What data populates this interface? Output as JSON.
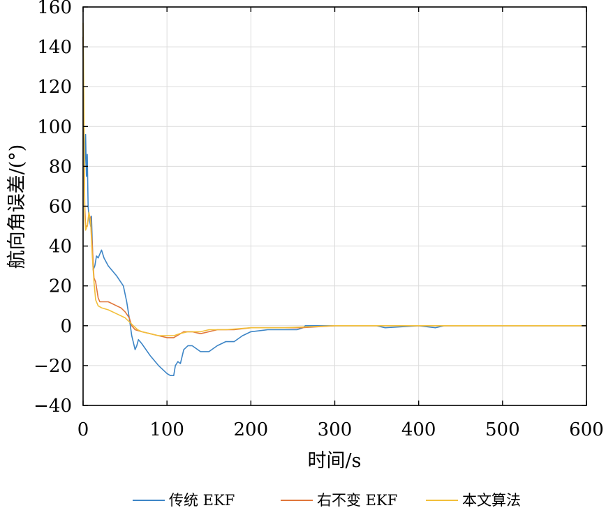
{
  "chart_data": {
    "type": "line",
    "xlabel": "时间/s",
    "ylabel": "航向角误差/(°)",
    "xlim": [
      0,
      600
    ],
    "ylim": [
      -40,
      160
    ],
    "xticks": [
      0,
      100,
      200,
      300,
      400,
      500,
      600
    ],
    "yticks": [
      -40,
      -20,
      0,
      20,
      40,
      60,
      80,
      100,
      120,
      140,
      160
    ],
    "grid": true,
    "legend_position": "bottom",
    "series": [
      {
        "name": "传统 EKF",
        "color": "#3d85c6",
        "points": [
          [
            0,
            145
          ],
          [
            1,
            100
          ],
          [
            2,
            80
          ],
          [
            3,
            96
          ],
          [
            4,
            75
          ],
          [
            5,
            86
          ],
          [
            6,
            60
          ],
          [
            7,
            55
          ],
          [
            9,
            50
          ],
          [
            10,
            55
          ],
          [
            12,
            28
          ],
          [
            14,
            30
          ],
          [
            16,
            35
          ],
          [
            18,
            34
          ],
          [
            20,
            36
          ],
          [
            22,
            38
          ],
          [
            25,
            34
          ],
          [
            30,
            30
          ],
          [
            40,
            25
          ],
          [
            48,
            20
          ],
          [
            52,
            12
          ],
          [
            55,
            4
          ],
          [
            58,
            -5
          ],
          [
            62,
            -12
          ],
          [
            64,
            -10
          ],
          [
            66,
            -7
          ],
          [
            70,
            -9
          ],
          [
            80,
            -15
          ],
          [
            90,
            -20
          ],
          [
            100,
            -24
          ],
          [
            104,
            -25
          ],
          [
            108,
            -25
          ],
          [
            110,
            -20
          ],
          [
            113,
            -18
          ],
          [
            116,
            -19
          ],
          [
            120,
            -12
          ],
          [
            125,
            -10
          ],
          [
            130,
            -10
          ],
          [
            140,
            -13
          ],
          [
            145,
            -13
          ],
          [
            150,
            -13
          ],
          [
            160,
            -10
          ],
          [
            170,
            -8
          ],
          [
            180,
            -8
          ],
          [
            190,
            -5
          ],
          [
            200,
            -3
          ],
          [
            220,
            -2
          ],
          [
            240,
            -2
          ],
          [
            255,
            -2
          ],
          [
            262,
            -1
          ],
          [
            265,
            0
          ],
          [
            280,
            0
          ],
          [
            300,
            0
          ],
          [
            350,
            0
          ],
          [
            360,
            -1
          ],
          [
            400,
            0
          ],
          [
            420,
            -1
          ],
          [
            430,
            0
          ],
          [
            500,
            0
          ],
          [
            600,
            0
          ]
        ]
      },
      {
        "name": "右不变 EKF",
        "color": "#e0763a",
        "points": [
          [
            0,
            145
          ],
          [
            1,
            100
          ],
          [
            2,
            60
          ],
          [
            3,
            50
          ],
          [
            5,
            50
          ],
          [
            7,
            56
          ],
          [
            9,
            54
          ],
          [
            11,
            40
          ],
          [
            13,
            24
          ],
          [
            15,
            22
          ],
          [
            18,
            14
          ],
          [
            20,
            12
          ],
          [
            25,
            12
          ],
          [
            30,
            12
          ],
          [
            35,
            11
          ],
          [
            40,
            10
          ],
          [
            45,
            9
          ],
          [
            50,
            7
          ],
          [
            55,
            4
          ],
          [
            58,
            0
          ],
          [
            62,
            -2
          ],
          [
            70,
            -3
          ],
          [
            80,
            -4
          ],
          [
            90,
            -5
          ],
          [
            100,
            -6
          ],
          [
            108,
            -6
          ],
          [
            112,
            -5
          ],
          [
            120,
            -3
          ],
          [
            130,
            -3
          ],
          [
            140,
            -4
          ],
          [
            150,
            -3
          ],
          [
            160,
            -2
          ],
          [
            170,
            -2
          ],
          [
            180,
            -2
          ],
          [
            200,
            -1
          ],
          [
            230,
            -1
          ],
          [
            260,
            -1
          ],
          [
            300,
            0
          ],
          [
            600,
            0
          ]
        ]
      },
      {
        "name": "本文算法",
        "color": "#f2bf3a",
        "points": [
          [
            0,
            152
          ],
          [
            1,
            112
          ],
          [
            2,
            55
          ],
          [
            3,
            48
          ],
          [
            5,
            50
          ],
          [
            7,
            57
          ],
          [
            9,
            52
          ],
          [
            11,
            35
          ],
          [
            13,
            22
          ],
          [
            15,
            13
          ],
          [
            18,
            10
          ],
          [
            22,
            9
          ],
          [
            30,
            8
          ],
          [
            40,
            6
          ],
          [
            50,
            4
          ],
          [
            55,
            2
          ],
          [
            60,
            0
          ],
          [
            65,
            -2
          ],
          [
            70,
            -3
          ],
          [
            80,
            -4
          ],
          [
            90,
            -5
          ],
          [
            100,
            -5
          ],
          [
            108,
            -5
          ],
          [
            115,
            -4
          ],
          [
            125,
            -3
          ],
          [
            140,
            -3
          ],
          [
            150,
            -2
          ],
          [
            170,
            -2
          ],
          [
            200,
            -1
          ],
          [
            240,
            -1
          ],
          [
            300,
            0
          ],
          [
            600,
            0
          ]
        ]
      }
    ]
  }
}
